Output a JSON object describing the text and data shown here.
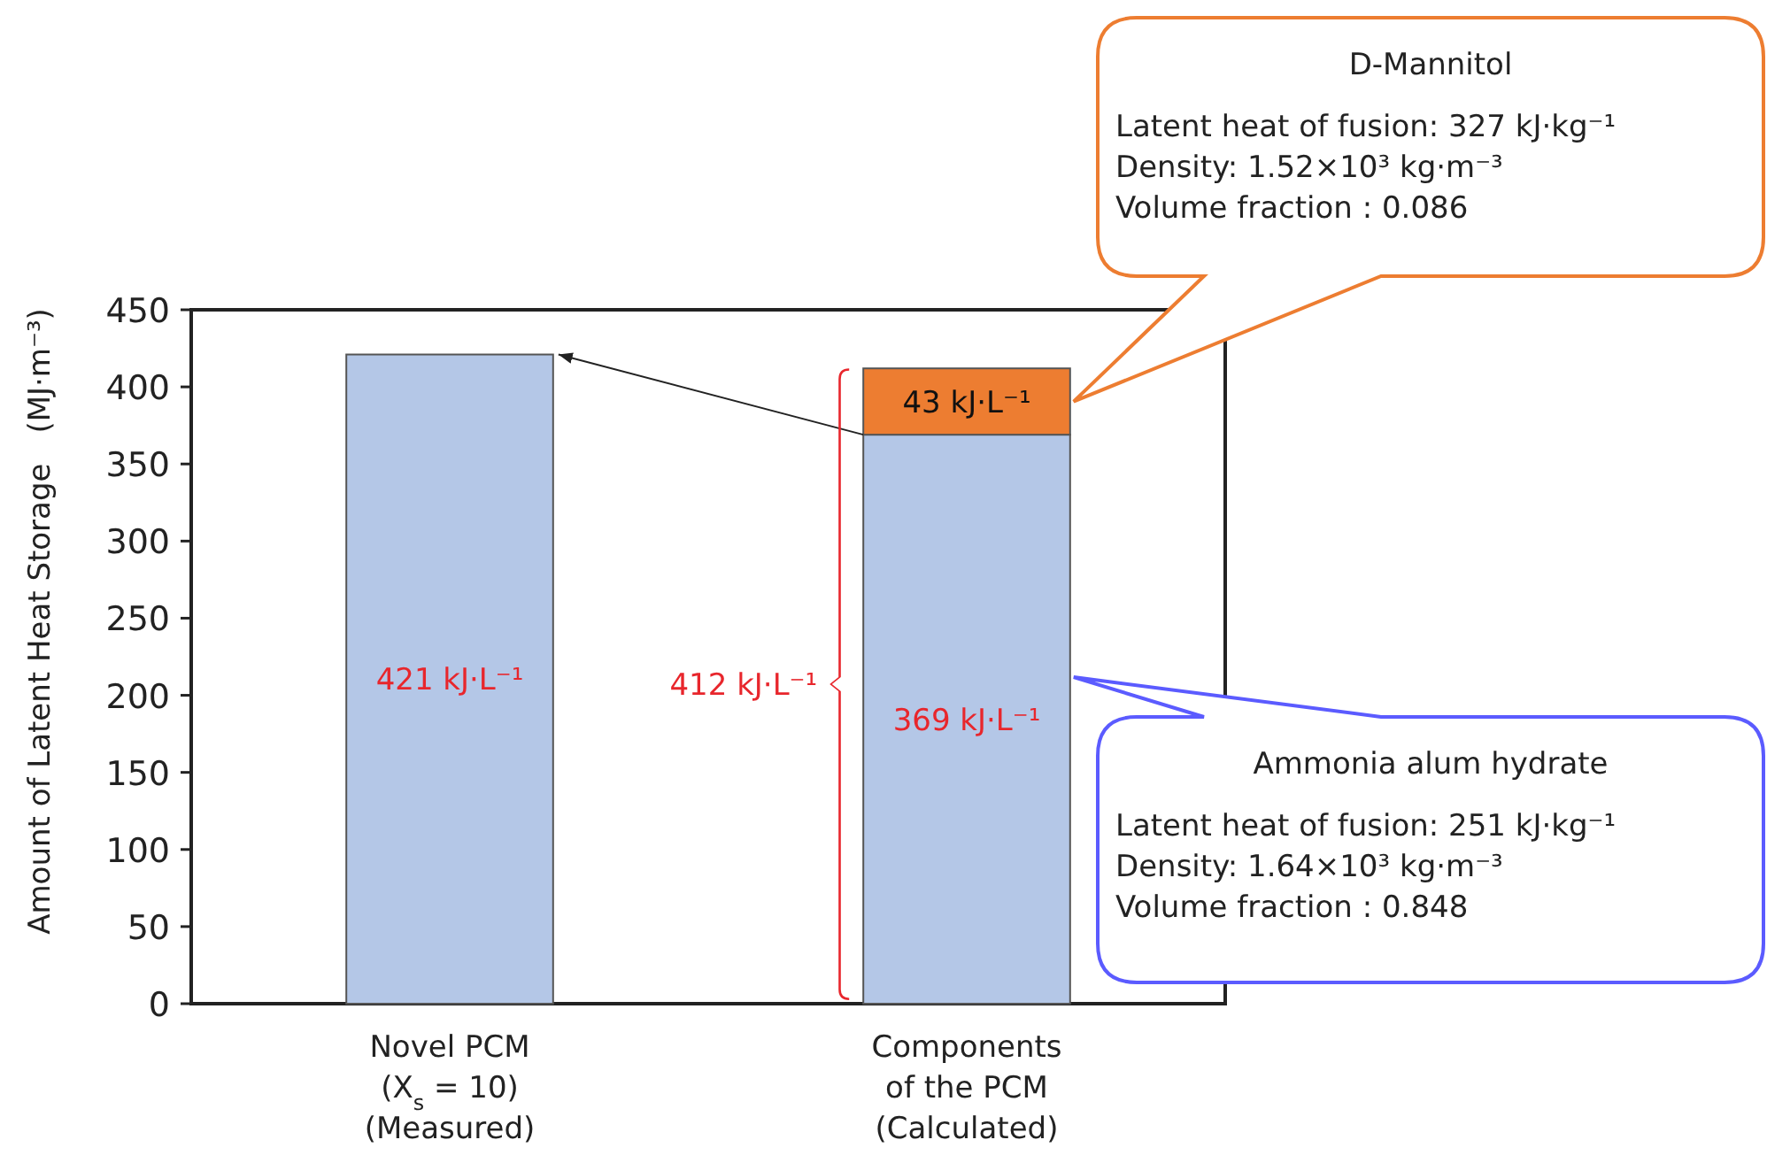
{
  "chart_data": {
    "type": "bar",
    "stacked": true,
    "ylabel": "Amount of Latent Heat Storage　(MJ·m⁻³)",
    "categories": [
      "Novel PCM\n(X$_{s}$ = 10)\n(Measured)",
      "Components\nof the PCM\n(Calculated)"
    ],
    "series": [
      {
        "color": "#b4c7e7",
        "values": [
          421,
          369
        ],
        "value_labels": [
          "421 kJ·L⁻¹",
          "369 kJ·L⁻¹"
        ]
      },
      {
        "color": "#ed7d31",
        "values": [
          null,
          43
        ],
        "value_labels": [
          null,
          "43 kJ·L⁻¹"
        ]
      }
    ],
    "ylim": [
      0,
      450
    ],
    "yticks": [
      0,
      50,
      100,
      150,
      200,
      250,
      300,
      350,
      400,
      450
    ],
    "annotations": [
      "412 kJ·L⁻¹",
      "D-Mannitol\nLatent heat of fusion: 327 kJ·kg⁻¹\nDensity: 1.52×10³ kg·m⁻³\nVolume fraction : 0.086",
      "Ammonia alum hydrate\nLatent heat of fusion: 251 kJ·kg⁻¹\nDensity: 1.64×10³ kg·m⁻³\nVolume fraction : 0.848"
    ],
    "grid": false
  }
}
